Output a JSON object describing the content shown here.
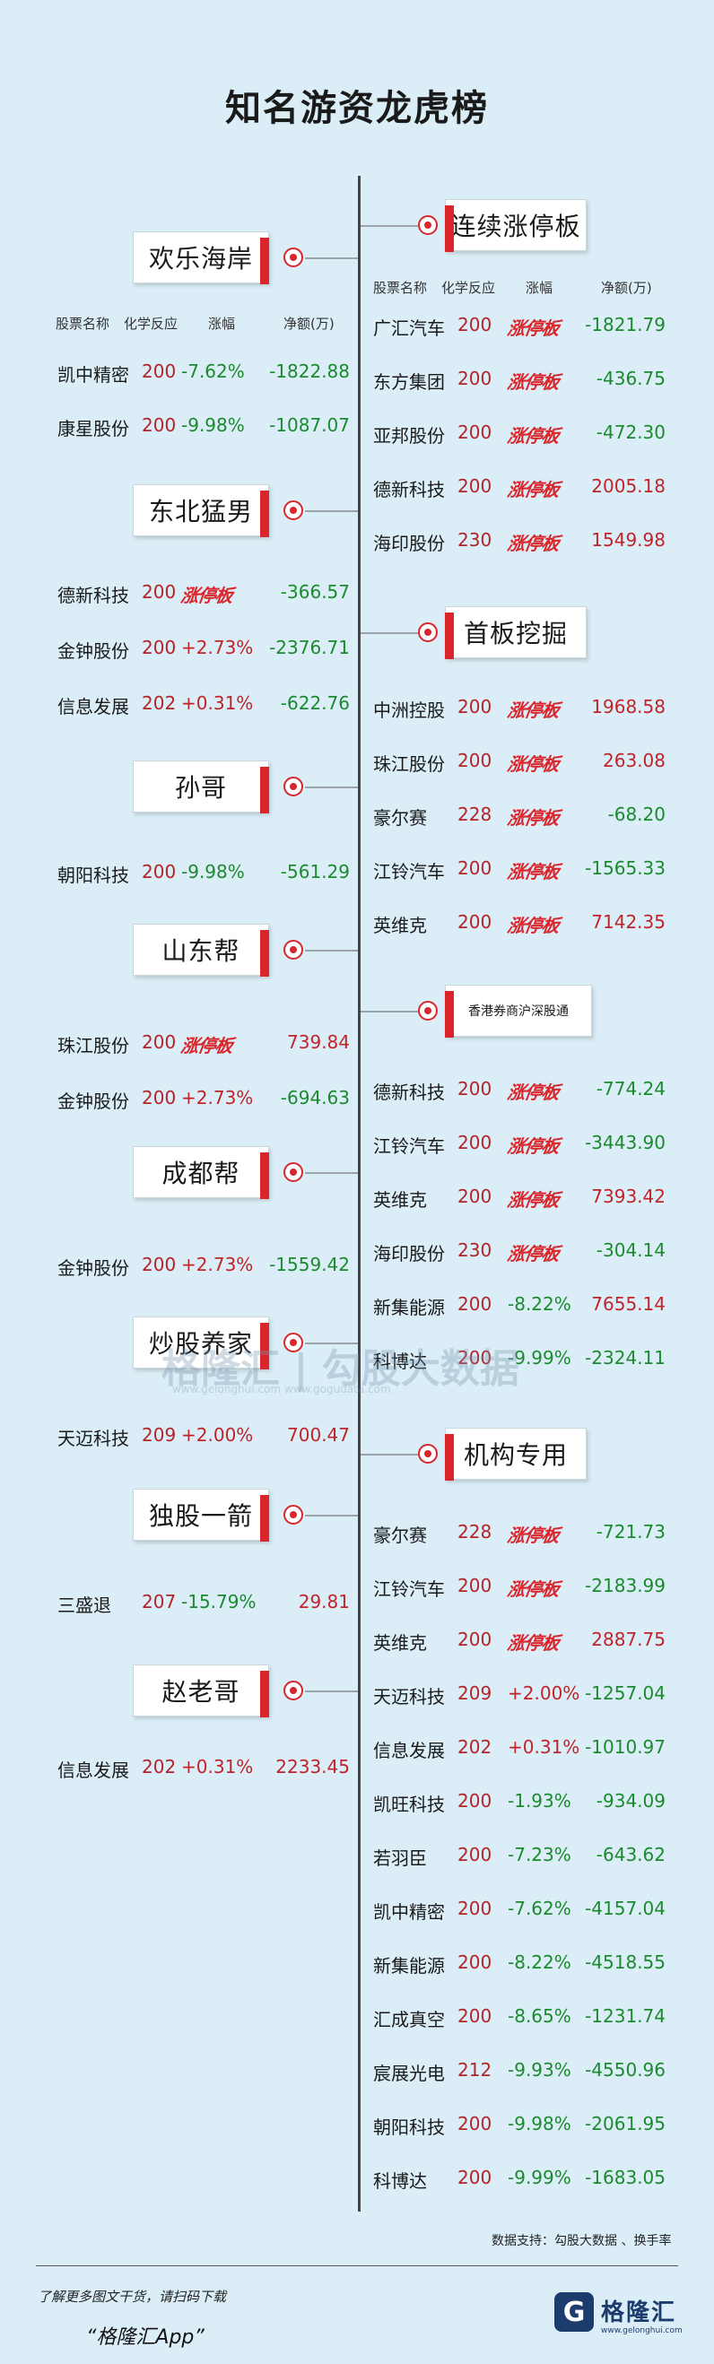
{
  "title": "知名游资龙虎榜",
  "colors": {
    "accent": "#d9262c",
    "up": "#c0242a",
    "down": "#1b8a2e",
    "background": "#dbeef7"
  },
  "column_headers": {
    "name": "股票名称",
    "code": "化学反应",
    "change": "涨幅",
    "net": "净额(万)"
  },
  "limit_label": "涨停板",
  "left_groups": [
    {
      "name": "欢乐海岸",
      "rows": [
        {
          "name": "凯中精密",
          "code": "200",
          "change": "-7.62%",
          "net": "-1822.88"
        },
        {
          "name": "康星股份",
          "code": "200",
          "change": "-9.98%",
          "net": "-1087.07"
        }
      ]
    },
    {
      "name": "东北猛男",
      "rows": [
        {
          "name": "德新科技",
          "code": "200",
          "change": "涨停板",
          "net": "-366.57"
        },
        {
          "name": "金钟股份",
          "code": "200",
          "change": "+2.73%",
          "net": "-2376.71"
        },
        {
          "name": "信息发展",
          "code": "202",
          "change": "+0.31%",
          "net": "-622.76"
        }
      ]
    },
    {
      "name": "孙哥",
      "rows": [
        {
          "name": "朝阳科技",
          "code": "200",
          "change": "-9.98%",
          "net": "-561.29"
        }
      ]
    },
    {
      "name": "山东帮",
      "rows": [
        {
          "name": "珠江股份",
          "code": "200",
          "change": "涨停板",
          "net": "739.84"
        },
        {
          "name": "金钟股份",
          "code": "200",
          "change": "+2.73%",
          "net": "-694.63"
        }
      ]
    },
    {
      "name": "成都帮",
      "rows": [
        {
          "name": "金钟股份",
          "code": "200",
          "change": "+2.73%",
          "net": "-1559.42"
        }
      ]
    },
    {
      "name": "炒股养家",
      "rows": [
        {
          "name": "天迈科技",
          "code": "209",
          "change": "+2.00%",
          "net": "700.47"
        }
      ]
    },
    {
      "name": "独股一箭",
      "rows": [
        {
          "name": "三盛退",
          "code": "207",
          "change": "-15.79%",
          "net": "29.81"
        }
      ]
    },
    {
      "name": "赵老哥",
      "rows": [
        {
          "name": "信息发展",
          "code": "202",
          "change": "+0.31%",
          "net": "2233.45"
        }
      ]
    }
  ],
  "right_groups": [
    {
      "name": "连续涨停板",
      "rows": [
        {
          "name": "广汇汽车",
          "code": "200",
          "change": "涨停板",
          "net": "-1821.79"
        },
        {
          "name": "东方集团",
          "code": "200",
          "change": "涨停板",
          "net": "-436.75"
        },
        {
          "name": "亚邦股份",
          "code": "200",
          "change": "涨停板",
          "net": "-472.30"
        },
        {
          "name": "德新科技",
          "code": "200",
          "change": "涨停板",
          "net": "2005.18"
        },
        {
          "name": "海印股份",
          "code": "230",
          "change": "涨停板",
          "net": "1549.98"
        }
      ]
    },
    {
      "name": "首板挖掘",
      "rows": [
        {
          "name": "中洲控股",
          "code": "200",
          "change": "涨停板",
          "net": "1968.58"
        },
        {
          "name": "珠江股份",
          "code": "200",
          "change": "涨停板",
          "net": "263.08"
        },
        {
          "name": "豪尔赛",
          "code": "228",
          "change": "涨停板",
          "net": "-68.20"
        },
        {
          "name": "江铃汽车",
          "code": "200",
          "change": "涨停板",
          "net": "-1565.33"
        },
        {
          "name": "英维克",
          "code": "200",
          "change": "涨停板",
          "net": "7142.35"
        }
      ]
    },
    {
      "name": "香港券商沪深股通",
      "rows": [
        {
          "name": "德新科技",
          "code": "200",
          "change": "涨停板",
          "net": "-774.24"
        },
        {
          "name": "江铃汽车",
          "code": "200",
          "change": "涨停板",
          "net": "-3443.90"
        },
        {
          "name": "英维克",
          "code": "200",
          "change": "涨停板",
          "net": "7393.42"
        },
        {
          "name": "海印股份",
          "code": "230",
          "change": "涨停板",
          "net": "-304.14"
        },
        {
          "name": "新集能源",
          "code": "200",
          "change": "-8.22%",
          "net": "7655.14"
        },
        {
          "name": "科博达",
          "code": "200",
          "change": "-9.99%",
          "net": "-2324.11"
        }
      ]
    },
    {
      "name": "机构专用",
      "rows": [
        {
          "name": "豪尔赛",
          "code": "228",
          "change": "涨停板",
          "net": "-721.73"
        },
        {
          "name": "江铃汽车",
          "code": "200",
          "change": "涨停板",
          "net": "-2183.99"
        },
        {
          "name": "英维克",
          "code": "200",
          "change": "涨停板",
          "net": "2887.75"
        },
        {
          "name": "天迈科技",
          "code": "209",
          "change": "+2.00%",
          "net": "-1257.04"
        },
        {
          "name": "信息发展",
          "code": "202",
          "change": "+0.31%",
          "net": "-1010.97"
        },
        {
          "name": "凯旺科技",
          "code": "200",
          "change": "-1.93%",
          "net": "-934.09"
        },
        {
          "name": "若羽臣",
          "code": "200",
          "change": "-7.23%",
          "net": "-643.62"
        },
        {
          "name": "凯中精密",
          "code": "200",
          "change": "-7.62%",
          "net": "-4157.04"
        },
        {
          "name": "新集能源",
          "code": "200",
          "change": "-8.22%",
          "net": "-4518.55"
        },
        {
          "name": "汇成真空",
          "code": "200",
          "change": "-8.65%",
          "net": "-1231.74"
        },
        {
          "name": "宸展光电",
          "code": "212",
          "change": "-9.93%",
          "net": "-4550.96"
        },
        {
          "name": "朝阳科技",
          "code": "200",
          "change": "-9.98%",
          "net": "-2061.95"
        },
        {
          "name": "科博达",
          "code": "200",
          "change": "-9.99%",
          "net": "-1683.05"
        }
      ]
    }
  ],
  "watermark": {
    "brand": "格隆汇 | 勾股大数据",
    "sub": "www.gelonghui.com    www.gogudata.com"
  },
  "credit": "数据支持：勾股大数据 、换手率",
  "footer": {
    "line1": "了解更多图文干货，请扫码下载",
    "line2": "“格隆汇App”",
    "logo_text": "格隆汇",
    "logo_mark": "G",
    "logo_url": "www.gelonghui.com"
  }
}
